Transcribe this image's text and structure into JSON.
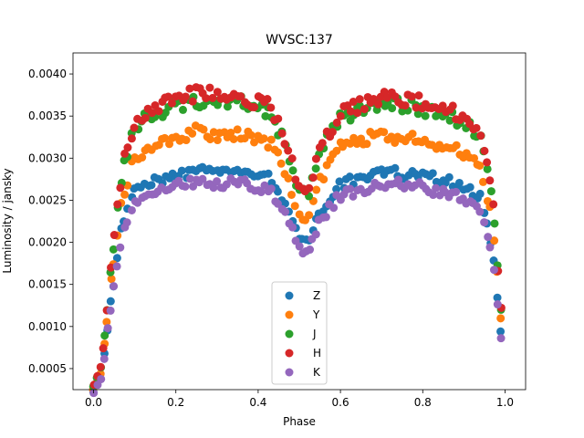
{
  "chart_data": {
    "type": "scatter",
    "title": "WVSC:137",
    "xlabel": "Phase",
    "ylabel": "Luminosity / jansky",
    "xlim": [
      -0.05,
      1.05
    ],
    "ylim": [
      0.00025,
      0.00425
    ],
    "xticks": [
      0.0,
      0.2,
      0.4,
      0.6,
      0.8,
      1.0
    ],
    "xtick_labels": [
      "0.0",
      "0.2",
      "0.4",
      "0.6",
      "0.8",
      "1.0"
    ],
    "yticks": [
      0.0005,
      0.001,
      0.0015,
      0.002,
      0.0025,
      0.003,
      0.0035,
      0.004
    ],
    "ytick_labels": [
      "0.0005",
      "0.0010",
      "0.0015",
      "0.0020",
      "0.0025",
      "0.0030",
      "0.0035",
      "0.0040"
    ],
    "grid": false,
    "legend_position": "lower center",
    "model": {
      "phase_nodes": [
        0.0,
        0.02,
        0.04,
        0.07,
        0.1,
        0.15,
        0.25,
        0.35,
        0.43,
        0.47,
        0.5,
        0.52,
        0.55,
        0.6,
        0.7,
        0.8,
        0.88,
        0.94,
        0.97,
        1.0
      ],
      "shape_nodes": [
        0.08,
        0.15,
        0.45,
        0.8,
        0.95,
        1.0,
        1.04,
        1.03,
        1.0,
        0.88,
        0.73,
        0.72,
        0.86,
        0.98,
        1.03,
        1.01,
        0.98,
        0.92,
        0.7,
        0.15
      ]
    },
    "series": [
      {
        "name": "Z",
        "color": "#1f77b4",
        "plateau": 0.00275
      },
      {
        "name": "Y",
        "color": "#ff7f0e",
        "plateau": 0.00318
      },
      {
        "name": "J",
        "color": "#2ca02c",
        "plateau": 0.00355
      },
      {
        "name": "H",
        "color": "#d62728",
        "plateau": 0.00362
      },
      {
        "name": "K",
        "color": "#9467bd",
        "plateau": 0.00262
      }
    ]
  }
}
